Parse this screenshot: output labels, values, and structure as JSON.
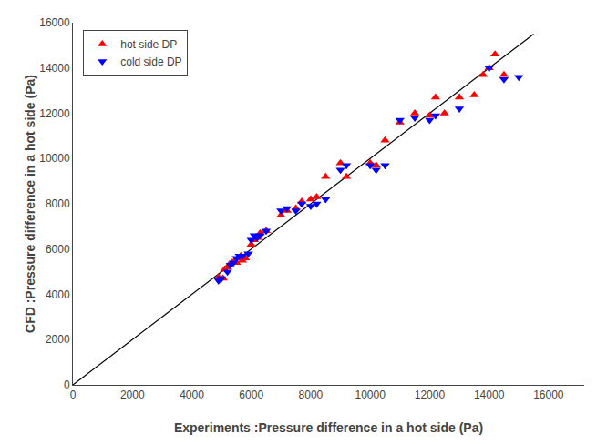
{
  "chart_data": {
    "type": "scatter",
    "xlabel": "Experiments :Pressure difference in a hot side (Pa)",
    "ylabel": "CFD :Pressure difference in a hot side (Pa)",
    "series": [
      {
        "type": "line",
        "color": "#000000",
        "line_style": "solid",
        "x": [
          0,
          15500
        ],
        "values": [
          0,
          15500
        ]
      },
      {
        "name": "hot side DP",
        "type": "scatter",
        "color": "#FF0000",
        "marker": "triangle-up",
        "x": [
          4900,
          5050,
          5100,
          5200,
          5250,
          5350,
          5450,
          5500,
          5550,
          5650,
          5700,
          5800,
          6000,
          6100,
          6200,
          6300,
          6500,
          7000,
          7200,
          7500,
          7700,
          8000,
          8200,
          8500,
          9000,
          9200,
          10000,
          10200,
          10500,
          11000,
          11500,
          12000,
          12200,
          12500,
          13000,
          13500,
          13800,
          14000,
          14200,
          14500
        ],
        "values": [
          4750,
          4700,
          5100,
          5200,
          5300,
          5400,
          5500,
          5400,
          5600,
          5700,
          5500,
          5600,
          6200,
          6400,
          6500,
          6700,
          6800,
          7500,
          7700,
          7800,
          8100,
          8200,
          8300,
          9200,
          9800,
          9200,
          9800,
          9700,
          10800,
          11600,
          12000,
          11900,
          12700,
          12000,
          12700,
          12800,
          13700,
          14000,
          14600,
          13700
        ]
      },
      {
        "name": "cold side DP",
        "type": "scatter",
        "color": "#0000FF",
        "marker": "triangle-down",
        "x": [
          4900,
          5000,
          5200,
          5300,
          5400,
          5500,
          5600,
          5700,
          5900,
          6000,
          6100,
          6200,
          6300,
          6500,
          7000,
          7200,
          7500,
          7700,
          8000,
          8200,
          8500,
          9000,
          9200,
          10000,
          10200,
          10500,
          11000,
          11500,
          12000,
          12200,
          13000,
          14000,
          14500,
          15000
        ],
        "values": [
          4600,
          4700,
          5000,
          5300,
          5400,
          5600,
          5700,
          5700,
          5800,
          6400,
          6600,
          6500,
          6600,
          6800,
          7700,
          7800,
          7700,
          8000,
          7900,
          8000,
          8200,
          9500,
          9700,
          9700,
          9500,
          9700,
          11700,
          11800,
          11700,
          11900,
          12200,
          14000,
          13500,
          13600
        ]
      }
    ],
    "xlim": [
      0,
      17200
    ],
    "ylim": [
      0,
      16000
    ],
    "xticks": [
      0,
      2000,
      4000,
      6000,
      8000,
      10000,
      12000,
      14000,
      16000
    ],
    "yticks": [
      0,
      2000,
      4000,
      6000,
      8000,
      10000,
      12000,
      14000,
      16000
    ],
    "grid": false,
    "legend": "upper left"
  }
}
